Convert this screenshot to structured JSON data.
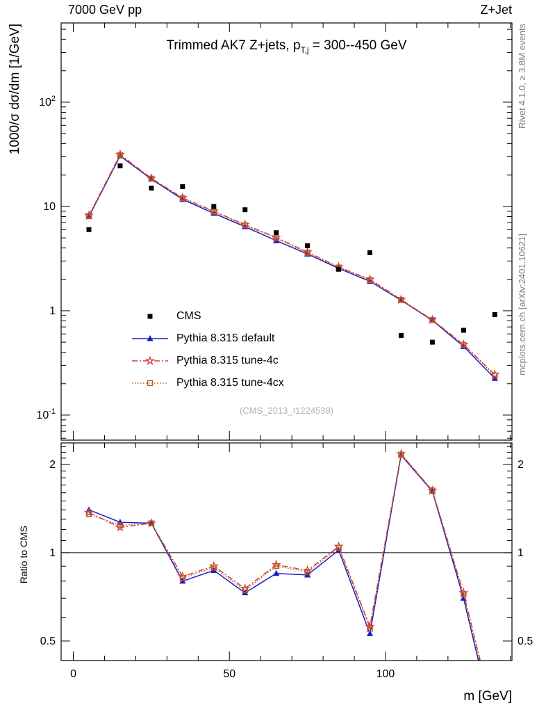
{
  "header": {
    "left": "7000 GeV pp",
    "right": "Z+Jet"
  },
  "titles": {
    "main_prefix": "Trimmed AK7 Z+jets, p",
    "main_sub": "T,j",
    "main_suffix": " = 300--450 GeV"
  },
  "labels": {
    "ylabel_main": "1000/σ dσ/dm [1/GeV]",
    "ylabel_ratio": "Ratio to CMS",
    "xlabel": "m [GeV]",
    "watermark": "(CMS_2013_I1224539)",
    "rivet": "Rivet 4.1.0, ≥ 3.8M events",
    "mcplots": "mcplots.cern.ch [arXiv:2401.10621]"
  },
  "colors": {
    "cms": "#000000",
    "pythia_default": "#1c1cc8",
    "tune_4c": "#d43c3c",
    "tune_4cx": "#b85c1e",
    "frame": "#000000",
    "gray_text": "#808080",
    "watermark": "#b3b3b3"
  },
  "chart_data": [
    {
      "type": "line",
      "panel": "main",
      "title": "Trimmed AK7 Z+jets, p_T,j = 300--450 GeV",
      "xlabel": "m [GeV]",
      "ylabel": "1000/σ dσ/dm [1/GeV]",
      "yscale": "log",
      "xlim": [
        -3.9,
        140.5
      ],
      "ylim": [
        0.0575,
        575
      ],
      "grid": false,
      "legend_position": "inside-left-lower",
      "x": [
        5,
        15,
        25,
        35,
        45,
        55,
        65,
        75,
        85,
        95,
        105,
        115,
        125,
        135
      ],
      "series": [
        {
          "name": "CMS",
          "marker": "filled-square",
          "line": "none",
          "color": "#000000",
          "values": [
            6.0,
            24.5,
            15.0,
            15.5,
            10.0,
            9.3,
            5.6,
            4.2,
            2.5,
            3.6,
            0.58,
            0.5,
            0.65,
            0.92
          ]
        },
        {
          "name": "Pythia 8.315 default",
          "marker": "filled-triangle",
          "line": "solid",
          "color": "#1c1cc8",
          "values": [
            8.0,
            30.5,
            18.3,
            11.7,
            8.6,
            6.4,
            4.7,
            3.5,
            2.55,
            1.92,
            1.26,
            0.81,
            0.455,
            0.225
          ]
        },
        {
          "name": "Pythia 8.315 tune-4c",
          "marker": "open-star",
          "line": "dashdot",
          "color": "#d43c3c",
          "values": [
            8.2,
            31.5,
            18.6,
            12.1,
            9.0,
            6.7,
            5.05,
            3.65,
            2.63,
            2.0,
            1.28,
            0.82,
            0.475,
            0.245
          ]
        },
        {
          "name": "Pythia 8.315 tune-4cx",
          "marker": "open-square",
          "line": "dotted",
          "color": "#b85c1e",
          "values": [
            8.1,
            31.0,
            18.5,
            12.0,
            8.9,
            6.6,
            4.95,
            3.6,
            2.6,
            1.97,
            1.27,
            0.815,
            0.47,
            0.24
          ]
        }
      ],
      "yticks": [
        {
          "v": 100,
          "t": "10",
          "e": "2"
        },
        {
          "v": 10,
          "t": "10"
        },
        {
          "v": 1,
          "t": "1"
        },
        {
          "v": 0.1,
          "t": "10",
          "e": "-1"
        }
      ]
    },
    {
      "type": "line",
      "panel": "ratio",
      "ylabel": "Ratio to CMS",
      "yscale": "log",
      "xlim": [
        -3.9,
        140.5
      ],
      "ylim": [
        0.429,
        2.367
      ],
      "refline": 1,
      "x": [
        5,
        15,
        25,
        35,
        45,
        55,
        65,
        75,
        85,
        95,
        105,
        115,
        125,
        135
      ],
      "series": [
        {
          "name": "Pythia 8.315 default",
          "marker": "filled-triangle",
          "line": "solid",
          "color": "#1c1cc8",
          "values": [
            1.4,
            1.27,
            1.26,
            0.8,
            0.87,
            0.73,
            0.85,
            0.84,
            1.02,
            0.53,
            2.15,
            1.62,
            0.7,
            0.25
          ]
        },
        {
          "name": "Pythia 8.315 tune-4c",
          "marker": "open-star",
          "line": "dashdot",
          "color": "#d43c3c",
          "values": [
            1.37,
            1.22,
            1.26,
            0.83,
            0.9,
            0.755,
            0.91,
            0.87,
            1.05,
            0.56,
            2.17,
            1.63,
            0.73,
            0.27
          ]
        },
        {
          "name": "Pythia 8.315 tune-4cx",
          "marker": "open-square",
          "line": "dotted",
          "color": "#b85c1e",
          "values": [
            1.355,
            1.24,
            1.26,
            0.82,
            0.89,
            0.745,
            0.9,
            0.86,
            1.04,
            0.55,
            2.16,
            1.63,
            0.72,
            0.26
          ]
        }
      ],
      "yticks": [
        {
          "v": 2,
          "t": "2"
        },
        {
          "v": 1,
          "t": "1"
        },
        {
          "v": 0.5,
          "t": "0.5"
        }
      ],
      "xticks": [
        {
          "v": 0,
          "t": "0"
        },
        {
          "v": 50,
          "t": "50"
        },
        {
          "v": 100,
          "t": "100"
        }
      ]
    }
  ]
}
